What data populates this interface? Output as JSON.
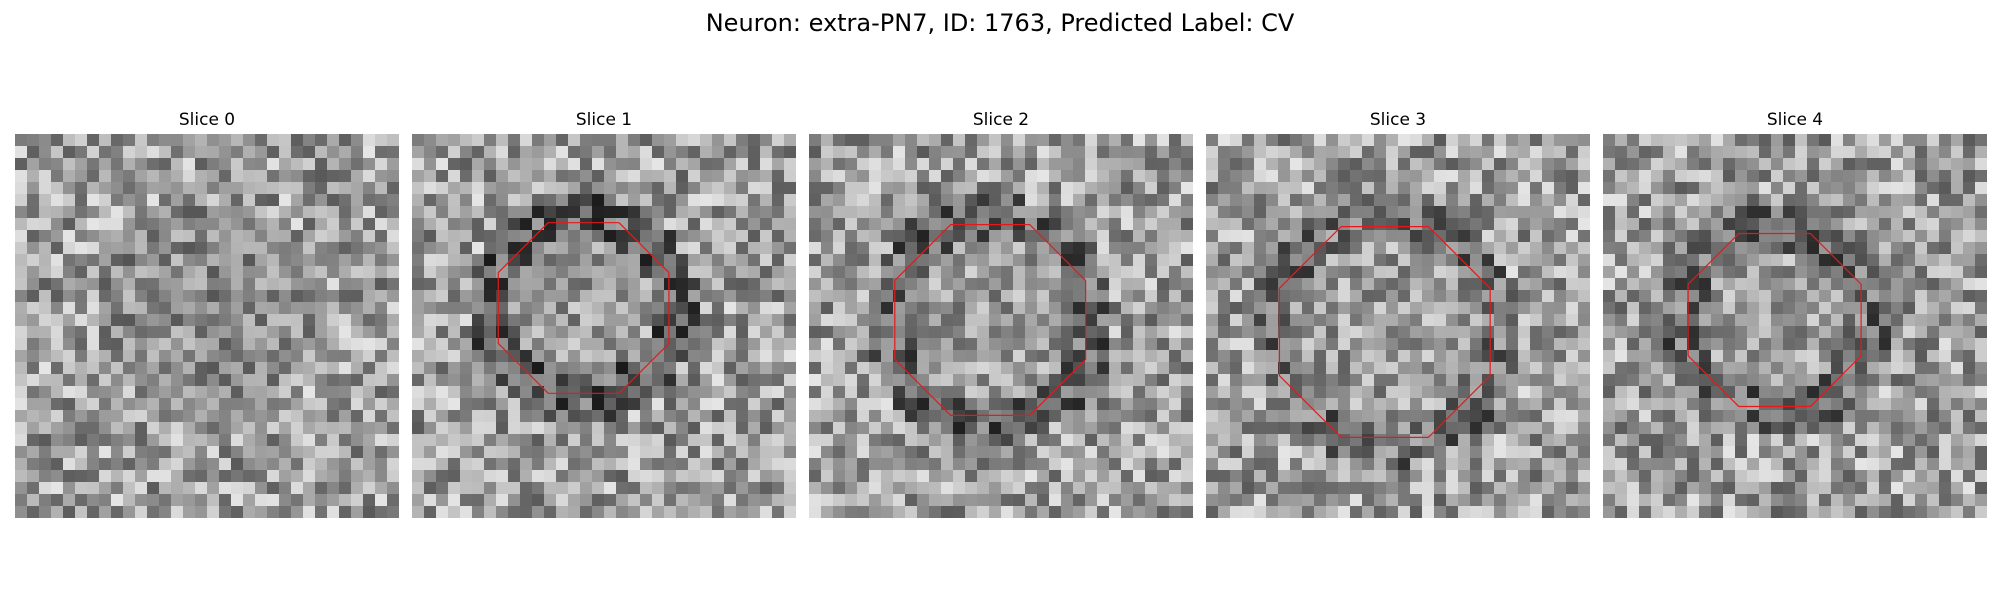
{
  "figure": {
    "title": "Neuron: extra-PN7, ID: 1763, Predicted Label: CV"
  },
  "colors": {
    "contour": "#e31a1c",
    "colormap": "gray"
  },
  "slices": [
    {
      "label": "Slice 0",
      "has_contour": false,
      "seed": 11
    },
    {
      "label": "Slice 1",
      "has_contour": true,
      "seed": 23
    },
    {
      "label": "Slice 2",
      "has_contour": true,
      "seed": 37
    },
    {
      "label": "Slice 3",
      "has_contour": true,
      "seed": 41
    },
    {
      "label": "Slice 4",
      "has_contour": true,
      "seed": 59
    }
  ]
}
